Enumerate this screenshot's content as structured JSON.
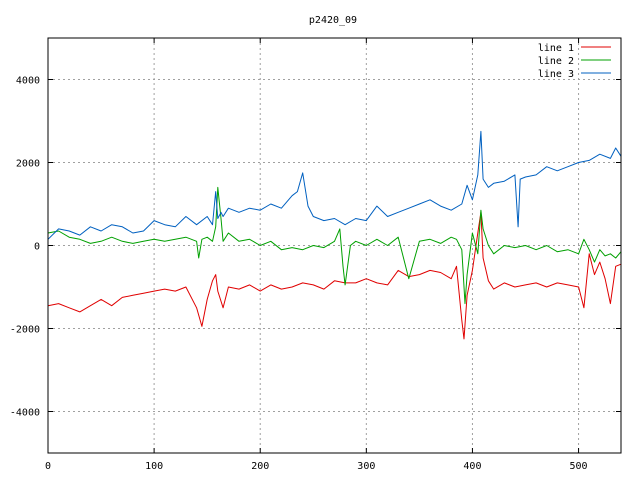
{
  "chart_data": {
    "type": "line",
    "title": "p2420_09",
    "xlabel": "",
    "ylabel": "",
    "xlim": [
      0,
      540
    ],
    "ylim": [
      -5000,
      5000
    ],
    "xticks": [
      0,
      100,
      200,
      300,
      400,
      500
    ],
    "yticks": [
      -4000,
      -2000,
      0,
      2000,
      4000
    ],
    "grid": true,
    "legend_position": "top-right",
    "series": [
      {
        "name": "line 1",
        "color": "#e00000",
        "x": [
          0,
          10,
          20,
          30,
          40,
          50,
          60,
          70,
          80,
          90,
          100,
          110,
          120,
          130,
          140,
          145,
          150,
          155,
          158,
          160,
          165,
          170,
          180,
          190,
          200,
          210,
          220,
          230,
          240,
          250,
          260,
          270,
          280,
          290,
          300,
          310,
          320,
          330,
          340,
          350,
          360,
          370,
          380,
          385,
          390,
          392,
          395,
          400,
          405,
          408,
          410,
          415,
          420,
          430,
          440,
          450,
          460,
          470,
          480,
          490,
          500,
          505,
          510,
          515,
          520,
          525,
          530,
          535,
          540
        ],
        "y": [
          -1450,
          -1400,
          -1500,
          -1600,
          -1450,
          -1300,
          -1450,
          -1250,
          -1200,
          -1150,
          -1100,
          -1050,
          -1100,
          -1000,
          -1500,
          -1950,
          -1300,
          -850,
          -700,
          -1100,
          -1500,
          -1000,
          -1050,
          -950,
          -1100,
          -950,
          -1050,
          -1000,
          -900,
          -950,
          -1050,
          -850,
          -900,
          -900,
          -800,
          -900,
          -950,
          -600,
          -750,
          -700,
          -600,
          -650,
          -800,
          -500,
          -1800,
          -2250,
          -1200,
          -600,
          300,
          800,
          -300,
          -850,
          -1050,
          -900,
          -1000,
          -950,
          -900,
          -1000,
          -900,
          -950,
          -1000,
          -1500,
          -200,
          -700,
          -400,
          -800,
          -1400,
          -500,
          -450
        ]
      },
      {
        "name": "line 2",
        "color": "#00a000",
        "x": [
          0,
          10,
          20,
          30,
          40,
          50,
          60,
          70,
          80,
          90,
          100,
          110,
          120,
          130,
          140,
          142,
          145,
          150,
          155,
          158,
          160,
          163,
          165,
          170,
          180,
          190,
          200,
          210,
          220,
          230,
          240,
          250,
          260,
          270,
          275,
          278,
          280,
          285,
          290,
          300,
          310,
          320,
          330,
          340,
          350,
          360,
          370,
          380,
          385,
          390,
          393,
          395,
          400,
          405,
          408,
          410,
          415,
          420,
          430,
          440,
          450,
          460,
          470,
          480,
          490,
          500,
          505,
          510,
          515,
          520,
          525,
          530,
          535,
          540
        ],
        "y": [
          300,
          350,
          200,
          150,
          50,
          100,
          200,
          100,
          50,
          100,
          150,
          100,
          150,
          200,
          100,
          -300,
          150,
          200,
          100,
          450,
          1400,
          650,
          100,
          300,
          100,
          150,
          0,
          100,
          -100,
          -50,
          -100,
          0,
          -50,
          100,
          400,
          -500,
          -950,
          0,
          100,
          0,
          150,
          0,
          200,
          -800,
          100,
          150,
          50,
          200,
          150,
          -100,
          -1400,
          -700,
          300,
          -200,
          850,
          400,
          0,
          -200,
          0,
          -50,
          0,
          -100,
          0,
          -150,
          -100,
          -200,
          150,
          -100,
          -400,
          -100,
          -250,
          -200,
          -300,
          -150
        ]
      },
      {
        "name": "line 3",
        "color": "#0060c0",
        "x": [
          0,
          10,
          20,
          30,
          40,
          50,
          60,
          70,
          80,
          90,
          100,
          110,
          120,
          130,
          140,
          150,
          155,
          158,
          160,
          163,
          165,
          170,
          180,
          190,
          200,
          210,
          220,
          230,
          235,
          240,
          245,
          250,
          260,
          270,
          280,
          290,
          300,
          310,
          320,
          330,
          340,
          350,
          360,
          370,
          380,
          390,
          395,
          400,
          405,
          408,
          410,
          415,
          420,
          430,
          440,
          443,
          445,
          450,
          460,
          470,
          480,
          490,
          500,
          510,
          520,
          530,
          535,
          540
        ],
        "y": [
          150,
          400,
          350,
          250,
          450,
          350,
          500,
          450,
          300,
          350,
          600,
          500,
          450,
          700,
          500,
          700,
          500,
          1300,
          650,
          800,
          700,
          900,
          800,
          900,
          850,
          1000,
          900,
          1200,
          1300,
          1750,
          950,
          700,
          600,
          650,
          500,
          650,
          600,
          950,
          700,
          800,
          900,
          1000,
          1100,
          950,
          850,
          1000,
          1450,
          1100,
          1700,
          2750,
          1600,
          1400,
          1500,
          1550,
          1700,
          450,
          1600,
          1650,
          1700,
          1900,
          1800,
          1900,
          2000,
          2050,
          2200,
          2100,
          2350,
          2150
        ]
      }
    ]
  }
}
